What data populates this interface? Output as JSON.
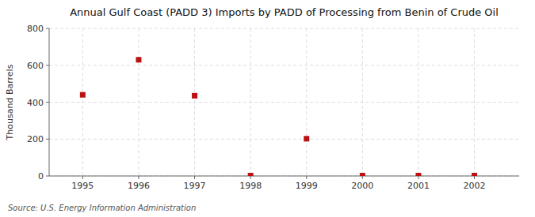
{
  "chart_data": {
    "type": "scatter",
    "title": "Annual Gulf Coast (PADD 3) Imports by PADD of Processing from Benin of Crude Oil",
    "y_label": "Thousand Barrels",
    "source": "Source: U.S. Energy Information Administration",
    "x": [
      1995,
      1996,
      1997,
      1998,
      1999,
      2000,
      2001,
      2002
    ],
    "values": [
      440,
      630,
      435,
      2,
      202,
      2,
      2,
      2
    ],
    "color": "#bb1111",
    "marker": "square",
    "xlim": [
      1994.4,
      2002.8
    ],
    "ylim": [
      0,
      800
    ],
    "xticks": [
      1995,
      1996,
      1997,
      1998,
      1999,
      2000,
      2001,
      2002
    ],
    "yticks": [
      0,
      200,
      400,
      600,
      800
    ],
    "grid": true
  }
}
